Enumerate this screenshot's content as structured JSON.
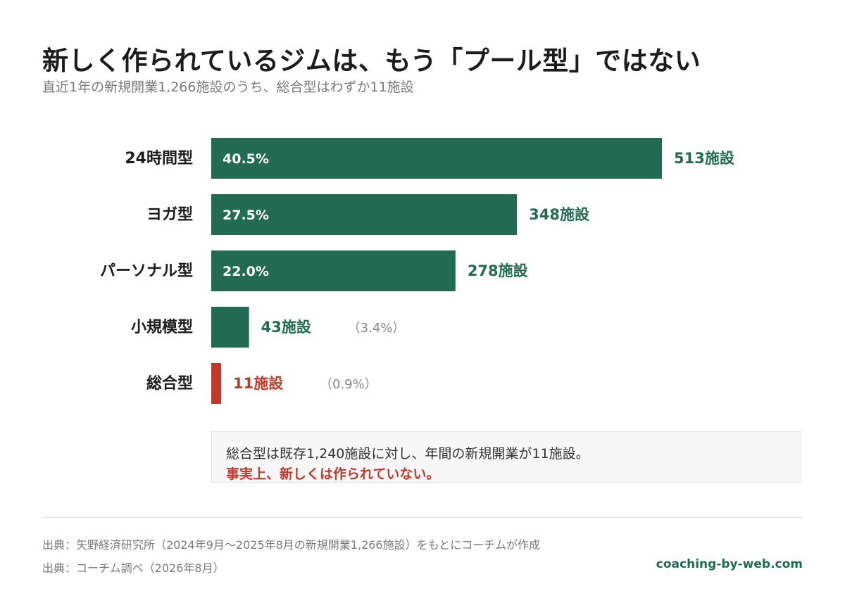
{
  "colors": {
    "bar": "#226b52",
    "highlight": "#c0392b",
    "pct_muted": "#888888",
    "text": "#1c1c1c"
  },
  "header": {
    "title": "新しく作られているジムは、もう「プール型」ではない",
    "subtitle": "直近1年の新規開業1,266施設のうち、総合型はわずか11施設"
  },
  "chart_data": {
    "type": "bar",
    "orientation": "horizontal",
    "categories": [
      "24時間型",
      "ヨガ型",
      "パーソナル型",
      "小規模型",
      "総合型"
    ],
    "values": [
      513,
      348,
      278,
      43,
      11
    ],
    "value_labels": [
      "513施設",
      "348施設",
      "278施設",
      "43施設",
      "11施設"
    ],
    "percent_labels": [
      "40.5%",
      "27.5%",
      "22.0%",
      "（3.4%）",
      "（0.9%）"
    ],
    "highlight_index": 4,
    "xlim": [
      0,
      513
    ],
    "grid": false,
    "legend": "none"
  },
  "note": {
    "line1": "総合型は既存1,240施設に対し、年間の新規開業が11施設。",
    "line2": "事実上、新しくは作られていない。"
  },
  "footer": {
    "source1": "出典：矢野経済研究所（2024年9月～2025年8月の新規開業1,266施設）をもとにコーチムが作成",
    "source2": "出典：コーチム調べ（2026年8月）",
    "site": "coaching-by-web.com"
  }
}
